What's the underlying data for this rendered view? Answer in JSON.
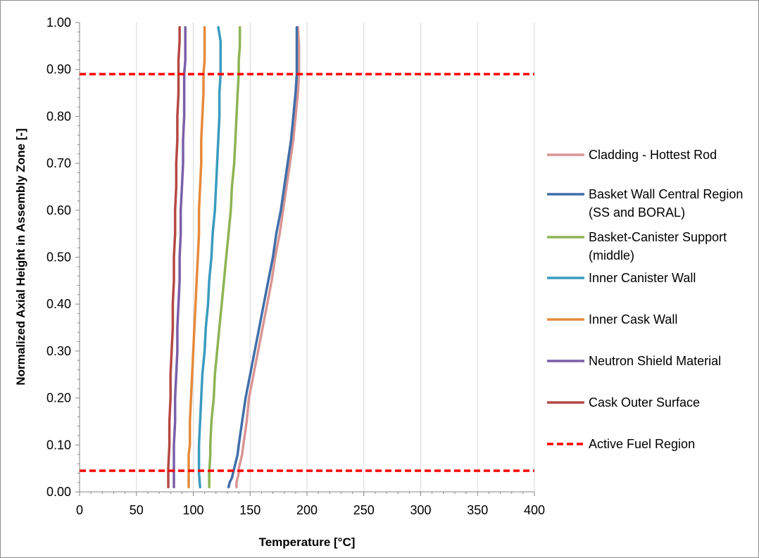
{
  "chart_data": {
    "type": "line",
    "title": "",
    "xlabel": "Temperature [°C]",
    "ylabel": "Normalized Axial Height in Assembly Zone [-]",
    "xlim": [
      0,
      400
    ],
    "ylim": [
      0,
      1
    ],
    "x_ticks": [
      "0",
      "50",
      "100",
      "150",
      "200",
      "250",
      "300",
      "350",
      "400"
    ],
    "y_ticks": [
      "0.00",
      "0.10",
      "0.20",
      "0.30",
      "0.40",
      "0.50",
      "0.60",
      "0.70",
      "0.80",
      "0.90",
      "1.00"
    ],
    "grid": "vertical major gridlines",
    "legend_position": "right",
    "series": [
      {
        "name": "Cladding - Hottest Rod",
        "color": "#d99594",
        "dash": false,
        "points": [
          [
            138,
            0.01
          ],
          [
            138,
            0.02
          ],
          [
            139,
            0.03
          ],
          [
            140,
            0.04
          ],
          [
            140,
            0.05
          ],
          [
            141,
            0.06
          ],
          [
            142,
            0.07
          ],
          [
            143,
            0.08
          ],
          [
            144,
            0.1
          ],
          [
            147,
            0.15
          ],
          [
            149,
            0.2
          ],
          [
            153,
            0.25
          ],
          [
            157,
            0.3
          ],
          [
            161,
            0.35
          ],
          [
            165,
            0.4
          ],
          [
            169,
            0.45
          ],
          [
            172,
            0.5
          ],
          [
            176,
            0.55
          ],
          [
            179,
            0.6
          ],
          [
            182,
            0.65
          ],
          [
            185,
            0.7
          ],
          [
            188,
            0.75
          ],
          [
            190,
            0.8
          ],
          [
            192,
            0.85
          ],
          [
            193,
            0.89
          ],
          [
            193,
            0.92
          ],
          [
            193,
            0.95
          ],
          [
            192,
            0.99
          ]
        ]
      },
      {
        "name": "Basket Wall Central Region (SS and BORAL)",
        "color": "#3f6fa9",
        "dash": false,
        "points": [
          [
            131,
            0.01
          ],
          [
            132,
            0.02
          ],
          [
            134,
            0.03
          ],
          [
            135,
            0.04
          ],
          [
            136,
            0.05
          ],
          [
            137,
            0.06
          ],
          [
            138,
            0.07
          ],
          [
            139,
            0.08
          ],
          [
            140,
            0.1
          ],
          [
            143,
            0.15
          ],
          [
            146,
            0.2
          ],
          [
            150,
            0.25
          ],
          [
            154,
            0.3
          ],
          [
            158,
            0.35
          ],
          [
            162,
            0.4
          ],
          [
            166,
            0.45
          ],
          [
            170,
            0.5
          ],
          [
            173,
            0.55
          ],
          [
            177,
            0.6
          ],
          [
            180,
            0.65
          ],
          [
            183,
            0.7
          ],
          [
            186,
            0.75
          ],
          [
            188,
            0.8
          ],
          [
            190,
            0.85
          ],
          [
            191,
            0.89
          ],
          [
            191,
            0.92
          ],
          [
            191,
            0.95
          ],
          [
            191,
            0.99
          ]
        ]
      },
      {
        "name": "Basket-Canister Support (middle)",
        "color": "#8db453",
        "dash": false,
        "points": [
          [
            114,
            0.01
          ],
          [
            114,
            0.04
          ],
          [
            115,
            0.08
          ],
          [
            115,
            0.1
          ],
          [
            116,
            0.15
          ],
          [
            118,
            0.2
          ],
          [
            119,
            0.25
          ],
          [
            121,
            0.3
          ],
          [
            123,
            0.35
          ],
          [
            125,
            0.4
          ],
          [
            127,
            0.45
          ],
          [
            129,
            0.5
          ],
          [
            131,
            0.55
          ],
          [
            133,
            0.6
          ],
          [
            134,
            0.65
          ],
          [
            136,
            0.7
          ],
          [
            137,
            0.75
          ],
          [
            138,
            0.8
          ],
          [
            139,
            0.85
          ],
          [
            140,
            0.89
          ],
          [
            140,
            0.92
          ],
          [
            141,
            0.95
          ],
          [
            141,
            0.99
          ]
        ]
      },
      {
        "name": "Inner Canister Wall",
        "color": "#3a9bbf",
        "dash": false,
        "points": [
          [
            106,
            0.01
          ],
          [
            105,
            0.04
          ],
          [
            105,
            0.08
          ],
          [
            105,
            0.1
          ],
          [
            106,
            0.15
          ],
          [
            107,
            0.2
          ],
          [
            108,
            0.25
          ],
          [
            110,
            0.3
          ],
          [
            111,
            0.35
          ],
          [
            113,
            0.4
          ],
          [
            114,
            0.45
          ],
          [
            116,
            0.5
          ],
          [
            117,
            0.55
          ],
          [
            119,
            0.6
          ],
          [
            120,
            0.65
          ],
          [
            121,
            0.7
          ],
          [
            122,
            0.75
          ],
          [
            123,
            0.8
          ],
          [
            123,
            0.85
          ],
          [
            124,
            0.89
          ],
          [
            124,
            0.92
          ],
          [
            124,
            0.96
          ],
          [
            122,
            0.99
          ]
        ]
      },
      {
        "name": "Inner Cask Wall",
        "color": "#e68a3c",
        "dash": false,
        "points": [
          [
            96,
            0.01
          ],
          [
            96,
            0.04
          ],
          [
            96,
            0.08
          ],
          [
            97,
            0.1
          ],
          [
            97,
            0.15
          ],
          [
            98,
            0.2
          ],
          [
            99,
            0.25
          ],
          [
            100,
            0.3
          ],
          [
            101,
            0.35
          ],
          [
            102,
            0.4
          ],
          [
            103,
            0.45
          ],
          [
            104,
            0.5
          ],
          [
            105,
            0.55
          ],
          [
            105,
            0.6
          ],
          [
            106,
            0.65
          ],
          [
            107,
            0.7
          ],
          [
            107,
            0.75
          ],
          [
            108,
            0.8
          ],
          [
            109,
            0.85
          ],
          [
            109,
            0.89
          ],
          [
            110,
            0.92
          ],
          [
            110,
            0.96
          ],
          [
            110,
            0.99
          ]
        ]
      },
      {
        "name": "Neutron Shield Material",
        "color": "#7b5ea8",
        "dash": false,
        "points": [
          [
            83,
            0.01
          ],
          [
            83,
            0.05
          ],
          [
            83,
            0.1
          ],
          [
            84,
            0.15
          ],
          [
            84,
            0.2
          ],
          [
            85,
            0.25
          ],
          [
            86,
            0.3
          ],
          [
            86,
            0.35
          ],
          [
            87,
            0.4
          ],
          [
            88,
            0.45
          ],
          [
            88,
            0.5
          ],
          [
            89,
            0.55
          ],
          [
            89,
            0.6
          ],
          [
            90,
            0.65
          ],
          [
            91,
            0.7
          ],
          [
            91,
            0.75
          ],
          [
            92,
            0.8
          ],
          [
            92,
            0.85
          ],
          [
            92,
            0.89
          ],
          [
            93,
            0.92
          ],
          [
            93,
            0.96
          ],
          [
            93,
            0.99
          ]
        ]
      },
      {
        "name": "Cask Outer Surface",
        "color": "#b54844",
        "dash": false,
        "points": [
          [
            78,
            0.01
          ],
          [
            78,
            0.05
          ],
          [
            79,
            0.1
          ],
          [
            79,
            0.15
          ],
          [
            80,
            0.2
          ],
          [
            80,
            0.25
          ],
          [
            81,
            0.3
          ],
          [
            82,
            0.35
          ],
          [
            82,
            0.4
          ],
          [
            83,
            0.45
          ],
          [
            83,
            0.5
          ],
          [
            84,
            0.55
          ],
          [
            84,
            0.6
          ],
          [
            85,
            0.65
          ],
          [
            85,
            0.7
          ],
          [
            86,
            0.75
          ],
          [
            86,
            0.8
          ],
          [
            87,
            0.85
          ],
          [
            87,
            0.89
          ],
          [
            87,
            0.92
          ],
          [
            88,
            0.96
          ],
          [
            88,
            0.99
          ]
        ]
      },
      {
        "name": "Active Fuel Region",
        "color": "#ff0000",
        "dash": true,
        "hlines": [
          0.045,
          0.89
        ]
      }
    ]
  }
}
